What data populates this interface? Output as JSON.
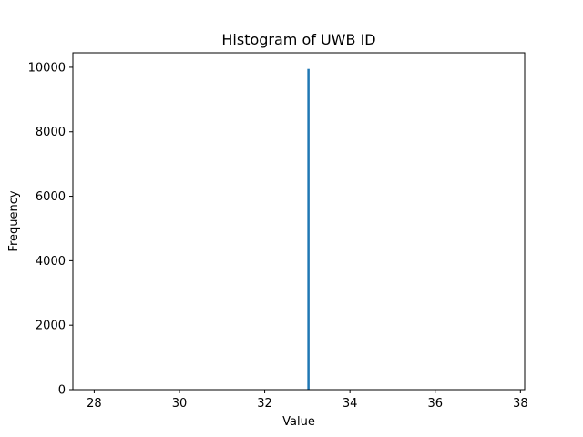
{
  "chart_data": {
    "type": "bar",
    "title": "Histogram of UWB ID",
    "xlabel": "Value",
    "ylabel": "Frequency",
    "xlim": [
      27.5,
      38.1
    ],
    "ylim": [
      0,
      10450
    ],
    "xticks": [
      28,
      30,
      32,
      34,
      36,
      38
    ],
    "yticks": [
      0,
      2000,
      4000,
      6000,
      8000,
      10000
    ],
    "bars": [
      {
        "x0": 33.0,
        "x1": 33.05,
        "value": 9950
      }
    ],
    "bar_color": "#1f77b4",
    "grid": false,
    "legend": "none"
  }
}
